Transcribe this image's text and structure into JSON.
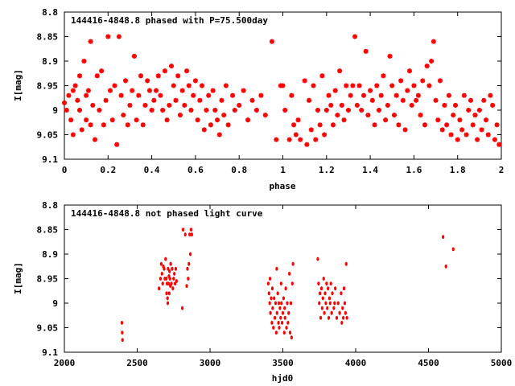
{
  "colors": {
    "points": "#ff0000",
    "frame": "#000000",
    "background": "#ffffff"
  },
  "chart_data": [
    {
      "type": "scatter",
      "title": "144416-4848.8 phased with P=75.500day",
      "xlabel": "phase",
      "ylabel": "I[mag]",
      "xlim": [
        0,
        2
      ],
      "ylim": [
        9.1,
        8.8
      ],
      "y_inverted": true,
      "grid": false,
      "marker": "star",
      "xticks": [
        "0",
        "0.2",
        "0.4",
        "0.6",
        "0.8",
        "1",
        "1.2",
        "1.4",
        "1.6",
        "1.8",
        "2"
      ],
      "xtick_values": [
        0,
        0.2,
        0.4,
        0.6,
        0.8,
        1,
        1.2,
        1.4,
        1.6,
        1.8,
        2
      ],
      "yticks": [
        "8.8",
        "8.85",
        "8.9",
        "8.95",
        "9",
        "9.05",
        "9.1"
      ],
      "ytick_values": [
        8.8,
        8.85,
        8.9,
        8.95,
        9,
        9.05,
        9.1
      ],
      "points": [
        [
          0.0,
          8.985
        ],
        [
          0.01,
          9.0
        ],
        [
          0.02,
          8.97
        ],
        [
          0.03,
          9.02
        ],
        [
          0.04,
          8.96
        ],
        [
          0.04,
          9.05
        ],
        [
          0.05,
          8.95
        ],
        [
          0.06,
          8.98
        ],
        [
          0.07,
          8.93
        ],
        [
          0.07,
          9.0
        ],
        [
          0.08,
          9.04
        ],
        [
          0.09,
          8.9
        ],
        [
          0.1,
          8.97
        ],
        [
          0.1,
          9.02
        ],
        [
          0.11,
          8.96
        ],
        [
          0.12,
          8.86
        ],
        [
          0.12,
          9.03
        ],
        [
          0.13,
          8.99
        ],
        [
          0.14,
          9.06
        ],
        [
          0.15,
          8.93
        ],
        [
          0.16,
          9.0
        ],
        [
          0.17,
          8.92
        ],
        [
          0.18,
          9.03
        ],
        [
          0.19,
          8.98
        ],
        [
          0.2,
          8.85
        ],
        [
          0.21,
          8.96
        ],
        [
          0.22,
          9.02
        ],
        [
          0.23,
          8.95
        ],
        [
          0.24,
          9.07
        ],
        [
          0.25,
          8.85
        ],
        [
          0.26,
          8.97
        ],
        [
          0.27,
          9.01
        ],
        [
          0.28,
          8.94
        ],
        [
          0.29,
          9.03
        ],
        [
          0.3,
          8.99
        ],
        [
          0.31,
          8.96
        ],
        [
          0.32,
          8.89
        ],
        [
          0.33,
          9.02
        ],
        [
          0.34,
          8.97
        ],
        [
          0.35,
          8.93
        ],
        [
          0.36,
          9.03
        ],
        [
          0.37,
          8.99
        ],
        [
          0.38,
          8.94
        ],
        [
          0.39,
          8.96
        ],
        [
          0.4,
          9.0
        ],
        [
          0.41,
          8.98
        ],
        [
          0.42,
          8.96
        ],
        [
          0.43,
          8.93
        ],
        [
          0.44,
          8.97
        ],
        [
          0.45,
          9.0
        ],
        [
          0.46,
          8.92
        ],
        [
          0.47,
          9.02
        ],
        [
          0.48,
          8.99
        ],
        [
          0.49,
          8.91
        ],
        [
          0.5,
          8.95
        ],
        [
          0.51,
          8.98
        ],
        [
          0.52,
          8.93
        ],
        [
          0.53,
          9.01
        ],
        [
          0.54,
          8.96
        ],
        [
          0.55,
          8.99
        ],
        [
          0.56,
          8.92
        ],
        [
          0.57,
          8.95
        ],
        [
          0.58,
          9.0
        ],
        [
          0.59,
          8.97
        ],
        [
          0.6,
          8.94
        ],
        [
          0.61,
          9.02
        ],
        [
          0.62,
          8.98
        ],
        [
          0.63,
          8.95
        ],
        [
          0.64,
          9.04
        ],
        [
          0.65,
          9.0
        ],
        [
          0.66,
          8.97
        ],
        [
          0.67,
          9.03
        ],
        [
          0.68,
          8.96
        ],
        [
          0.69,
          9.0
        ],
        [
          0.7,
          9.02
        ],
        [
          0.71,
          9.05
        ],
        [
          0.72,
          8.98
        ],
        [
          0.73,
          9.01
        ],
        [
          0.74,
          8.95
        ],
        [
          0.75,
          9.03
        ],
        [
          0.77,
          8.97
        ],
        [
          0.78,
          9.0
        ],
        [
          0.8,
          8.99
        ],
        [
          0.82,
          8.96
        ],
        [
          0.84,
          9.02
        ],
        [
          0.86,
          8.98
        ],
        [
          0.88,
          9.0
        ],
        [
          0.9,
          8.97
        ],
        [
          0.92,
          9.01
        ],
        [
          0.95,
          8.86
        ],
        [
          0.97,
          9.06
        ],
        [
          0.99,
          8.95
        ],
        [
          1.0,
          8.95
        ],
        [
          1.01,
          9.0
        ],
        [
          1.03,
          9.06
        ],
        [
          1.04,
          8.97
        ],
        [
          1.05,
          9.03
        ],
        [
          1.06,
          9.05
        ],
        [
          1.07,
          9.02
        ],
        [
          1.08,
          9.06
        ],
        [
          1.1,
          8.94
        ],
        [
          1.11,
          9.07
        ],
        [
          1.12,
          8.98
        ],
        [
          1.13,
          9.04
        ],
        [
          1.14,
          8.95
        ],
        [
          1.15,
          9.06
        ],
        [
          1.16,
          9.0
        ],
        [
          1.17,
          9.03
        ],
        [
          1.18,
          8.93
        ],
        [
          1.19,
          9.05
        ],
        [
          1.2,
          9.0
        ],
        [
          1.21,
          8.97
        ],
        [
          1.22,
          8.99
        ],
        [
          1.23,
          9.03
        ],
        [
          1.24,
          8.96
        ],
        [
          1.25,
          9.01
        ],
        [
          1.26,
          8.92
        ],
        [
          1.27,
          8.99
        ],
        [
          1.28,
          9.02
        ],
        [
          1.29,
          8.95
        ],
        [
          1.3,
          9.0
        ],
        [
          1.31,
          8.97
        ],
        [
          1.32,
          8.95
        ],
        [
          1.33,
          8.85
        ],
        [
          1.34,
          8.99
        ],
        [
          1.35,
          8.95
        ],
        [
          1.36,
          9.0
        ],
        [
          1.37,
          8.97
        ],
        [
          1.38,
          8.88
        ],
        [
          1.39,
          9.01
        ],
        [
          1.4,
          8.96
        ],
        [
          1.41,
          8.98
        ],
        [
          1.42,
          9.03
        ],
        [
          1.43,
          8.95
        ],
        [
          1.44,
          9.0
        ],
        [
          1.45,
          8.97
        ],
        [
          1.46,
          8.93
        ],
        [
          1.47,
          9.02
        ],
        [
          1.48,
          8.99
        ],
        [
          1.49,
          8.89
        ],
        [
          1.5,
          8.95
        ],
        [
          1.51,
          9.01
        ],
        [
          1.52,
          8.97
        ],
        [
          1.53,
          9.03
        ],
        [
          1.54,
          8.94
        ],
        [
          1.55,
          8.98
        ],
        [
          1.56,
          9.04
        ],
        [
          1.57,
          8.96
        ],
        [
          1.58,
          8.92
        ],
        [
          1.59,
          8.99
        ],
        [
          1.6,
          8.95
        ],
        [
          1.61,
          8.98
        ],
        [
          1.62,
          8.97
        ],
        [
          1.63,
          9.01
        ],
        [
          1.64,
          8.94
        ],
        [
          1.65,
          9.03
        ],
        [
          1.66,
          8.91
        ],
        [
          1.67,
          8.95
        ],
        [
          1.68,
          8.9
        ],
        [
          1.69,
          8.86
        ],
        [
          1.7,
          8.98
        ],
        [
          1.71,
          9.02
        ],
        [
          1.72,
          8.94
        ],
        [
          1.73,
          9.04
        ],
        [
          1.74,
          8.99
        ],
        [
          1.75,
          9.03
        ],
        [
          1.76,
          8.97
        ],
        [
          1.77,
          9.05
        ],
        [
          1.78,
          9.01
        ],
        [
          1.79,
          8.99
        ],
        [
          1.8,
          9.06
        ],
        [
          1.81,
          9.02
        ],
        [
          1.82,
          9.04
        ],
        [
          1.83,
          8.97
        ],
        [
          1.84,
          9.05
        ],
        [
          1.85,
          9.0
        ],
        [
          1.86,
          8.98
        ],
        [
          1.87,
          9.03
        ],
        [
          1.88,
          9.01
        ],
        [
          1.89,
          9.06
        ],
        [
          1.9,
          9.0
        ],
        [
          1.91,
          9.04
        ],
        [
          1.92,
          8.98
        ],
        [
          1.93,
          9.02
        ],
        [
          1.94,
          9.05
        ],
        [
          1.95,
          8.97
        ],
        [
          1.96,
          8.99
        ],
        [
          1.97,
          9.06
        ],
        [
          1.98,
          9.03
        ],
        [
          1.99,
          9.07
        ]
      ]
    },
    {
      "type": "scatter",
      "title": "144416-4848.8 not phased light curve",
      "xlabel": "hjd0",
      "ylabel": "I[mag]",
      "xlim": [
        2000,
        5000
      ],
      "ylim": [
        9.1,
        8.8
      ],
      "y_inverted": true,
      "grid": false,
      "marker": "dot",
      "xticks": [
        "2000",
        "2500",
        "3000",
        "3500",
        "4000",
        "4500",
        "5000"
      ],
      "xtick_values": [
        2000,
        2500,
        3000,
        3500,
        4000,
        4500,
        5000
      ],
      "yticks": [
        "8.8",
        "8.85",
        "8.9",
        "8.95",
        "9",
        "9.05",
        "9.1"
      ],
      "ytick_values": [
        8.8,
        8.85,
        8.9,
        8.95,
        9,
        9.05,
        9.1
      ],
      "points": [
        [
          2395,
          9.04
        ],
        [
          2397,
          9.06
        ],
        [
          2399,
          9.075
        ],
        [
          2650,
          8.97
        ],
        [
          2660,
          8.95
        ],
        [
          2665,
          8.92
        ],
        [
          2670,
          8.94
        ],
        [
          2675,
          8.96
        ],
        [
          2680,
          8.925
        ],
        [
          2685,
          8.93
        ],
        [
          2690,
          8.95
        ],
        [
          2695,
          8.91
        ],
        [
          2700,
          8.95
        ],
        [
          2702,
          8.98
        ],
        [
          2705,
          8.96
        ],
        [
          2708,
          8.99
        ],
        [
          2710,
          9.0
        ],
        [
          2712,
          8.93
        ],
        [
          2715,
          8.96
        ],
        [
          2718,
          8.945
        ],
        [
          2720,
          8.98
        ],
        [
          2722,
          8.935
        ],
        [
          2725,
          8.95
        ],
        [
          2728,
          8.965
        ],
        [
          2730,
          8.92
        ],
        [
          2735,
          8.96
        ],
        [
          2740,
          8.93
        ],
        [
          2745,
          8.97
        ],
        [
          2750,
          8.95
        ],
        [
          2755,
          8.94
        ],
        [
          2760,
          8.96
        ],
        [
          2765,
          8.93
        ],
        [
          2770,
          8.955
        ],
        [
          2810,
          9.01
        ],
        [
          2815,
          8.85
        ],
        [
          2830,
          8.86
        ],
        [
          2840,
          8.965
        ],
        [
          2845,
          8.93
        ],
        [
          2850,
          8.95
        ],
        [
          2855,
          8.92
        ],
        [
          2860,
          8.86
        ],
        [
          2865,
          8.9
        ],
        [
          2870,
          8.85
        ],
        [
          2875,
          8.86
        ],
        [
          3400,
          8.96
        ],
        [
          3405,
          8.98
        ],
        [
          3410,
          9.0
        ],
        [
          3412,
          8.95
        ],
        [
          3415,
          9.02
        ],
        [
          3420,
          8.99
        ],
        [
          3425,
          9.04
        ],
        [
          3428,
          8.97
        ],
        [
          3430,
          9.01
        ],
        [
          3435,
          9.05
        ],
        [
          3440,
          8.99
        ],
        [
          3445,
          9.03
        ],
        [
          3450,
          9.0
        ],
        [
          3455,
          9.06
        ],
        [
          3458,
          8.93
        ],
        [
          3460,
          9.02
        ],
        [
          3465,
          8.98
        ],
        [
          3470,
          9.04
        ],
        [
          3472,
          9.0
        ],
        [
          3475,
          9.05
        ],
        [
          3480,
          9.01
        ],
        [
          3485,
          9.03
        ],
        [
          3488,
          8.96
        ],
        [
          3490,
          9.0
        ],
        [
          3495,
          9.04
        ],
        [
          3500,
          9.02
        ],
        [
          3505,
          8.99
        ],
        [
          3510,
          9.06
        ],
        [
          3512,
          9.01
        ],
        [
          3515,
          9.03
        ],
        [
          3520,
          8.97
        ],
        [
          3525,
          9.05
        ],
        [
          3530,
          9.0
        ],
        [
          3535,
          9.04
        ],
        [
          3540,
          9.02
        ],
        [
          3545,
          8.94
        ],
        [
          3550,
          9.06
        ],
        [
          3555,
          9.0
        ],
        [
          3560,
          9.07
        ],
        [
          3565,
          8.96
        ],
        [
          3570,
          8.92
        ],
        [
          3740,
          8.91
        ],
        [
          3745,
          8.96
        ],
        [
          3750,
          9.0
        ],
        [
          3755,
          8.98
        ],
        [
          3760,
          9.03
        ],
        [
          3765,
          8.97
        ],
        [
          3770,
          9.01
        ],
        [
          3775,
          8.99
        ],
        [
          3780,
          8.95
        ],
        [
          3785,
          9.02
        ],
        [
          3790,
          8.98
        ],
        [
          3795,
          9.0
        ],
        [
          3800,
          8.96
        ],
        [
          3805,
          9.01
        ],
        [
          3810,
          8.97
        ],
        [
          3815,
          9.03
        ],
        [
          3820,
          8.99
        ],
        [
          3825,
          9.0
        ],
        [
          3830,
          8.96
        ],
        [
          3835,
          9.02
        ],
        [
          3840,
          8.98
        ],
        [
          3850,
          9.01
        ],
        [
          3855,
          9.0
        ],
        [
          3860,
          8.97
        ],
        [
          3870,
          9.03
        ],
        [
          3880,
          9.0
        ],
        [
          3890,
          9.02
        ],
        [
          3900,
          8.98
        ],
        [
          3905,
          9.04
        ],
        [
          3910,
          9.01
        ],
        [
          3915,
          9.03
        ],
        [
          3920,
          8.97
        ],
        [
          3925,
          9.0
        ],
        [
          3930,
          9.02
        ],
        [
          3935,
          8.92
        ],
        [
          3940,
          9.03
        ],
        [
          4600,
          8.865
        ],
        [
          4620,
          8.925
        ],
        [
          4670,
          8.89
        ]
      ]
    }
  ]
}
